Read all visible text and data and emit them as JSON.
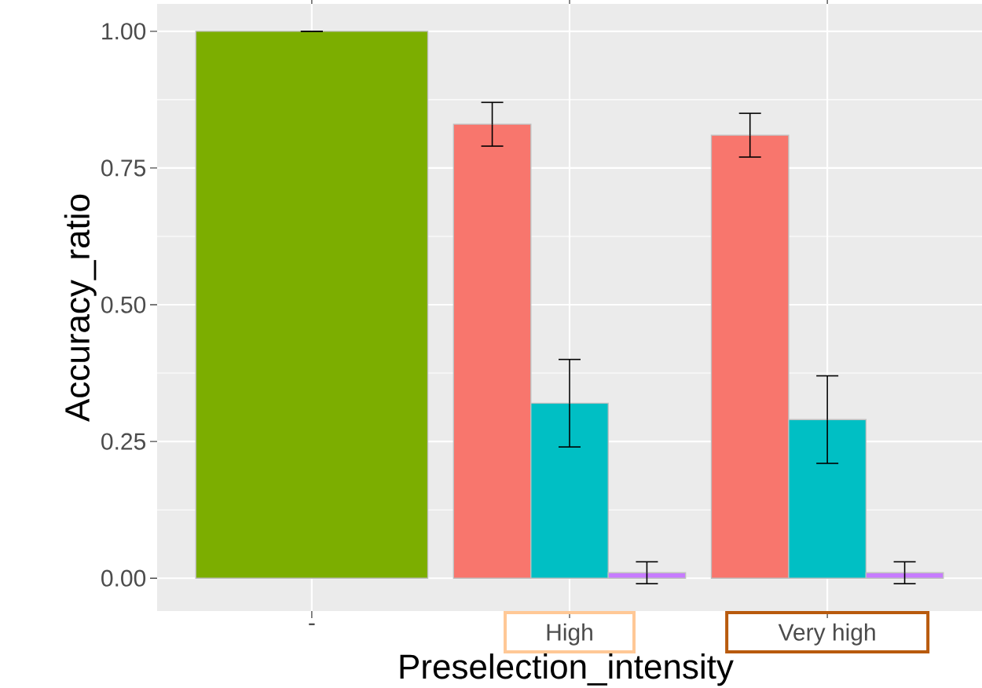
{
  "chart_data": {
    "type": "bar",
    "xlabel": "Preselection_intensity",
    "ylabel": "Accuracy_ratio",
    "categories": [
      "-",
      "High",
      "Very high"
    ],
    "series": [
      {
        "color": "#7cae00",
        "values": [
          1.0,
          null,
          null
        ],
        "errors": [
          0,
          null,
          null
        ]
      },
      {
        "color": "#f8766d",
        "values": [
          null,
          0.83,
          0.81
        ],
        "errors": [
          null,
          0.04,
          0.04
        ]
      },
      {
        "color": "#00bfc4",
        "values": [
          null,
          0.32,
          0.29
        ],
        "errors": [
          null,
          0.08,
          0.08
        ]
      },
      {
        "color": "#c77cff",
        "values": [
          null,
          0.01,
          0.01
        ],
        "errors": [
          null,
          0.02,
          0.02
        ]
      }
    ],
    "ylim": [
      -0.06,
      1.05
    ],
    "yticks": [
      {
        "value": 0,
        "label": "0.00"
      },
      {
        "value": 0.25,
        "label": "0.25"
      },
      {
        "value": 0.5,
        "label": "0.50"
      },
      {
        "value": 0.75,
        "label": "0.75"
      },
      {
        "value": 1,
        "label": "1.00"
      }
    ],
    "grid": true
  }
}
